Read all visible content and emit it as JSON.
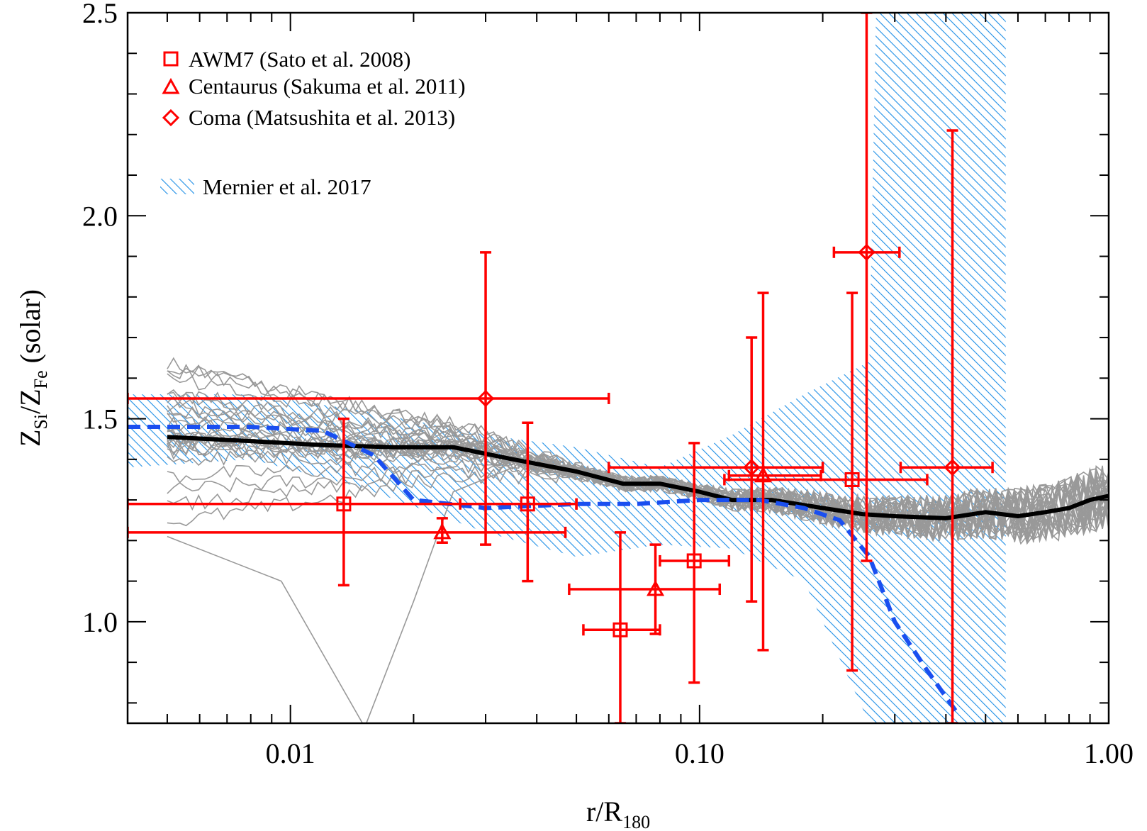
{
  "chart_data": {
    "type": "scatter",
    "x_scale": "log",
    "xlim": [
      0.004,
      1.0
    ],
    "ylim": [
      0.75,
      2.5
    ],
    "x_ticks": [
      0.01,
      0.1,
      1.0
    ],
    "x_tick_labels": [
      "0.01",
      "0.10",
      "1.00"
    ],
    "y_ticks": [
      1.0,
      1.5,
      2.0,
      2.5
    ],
    "y_tick_labels": [
      "1.0",
      "1.5",
      "2.0",
      "2.5"
    ],
    "xlabel": {
      "main": "r/R",
      "sub": "180"
    },
    "ylabel": {
      "z1": "Z",
      "sub1": "Si",
      "sep": "/Z",
      "sub2": "Fe",
      "suffix": " (solar)"
    },
    "colors": {
      "data": "#ff0000",
      "hatch": "#1f8fe6",
      "dashed": "#1a4ff0",
      "median": "#000000",
      "sims": "#999999"
    },
    "legend": [
      {
        "marker": "square",
        "label": "AWM7 (Sato et al. 2008)"
      },
      {
        "marker": "triangle",
        "label": "Centaurus (Sakuma et al. 2011)"
      },
      {
        "marker": "diamond",
        "label": "Coma (Matsushita et al. 2013)"
      },
      {
        "marker": "hatch",
        "label": "Mernier et al. 2017"
      }
    ],
    "series": [
      {
        "name": "AWM7 (Sato et al. 2008)",
        "marker": "square",
        "points": [
          {
            "x": 0.0135,
            "y": 1.29,
            "xmin": 0.004,
            "xmax": 0.05,
            "ymin": 1.09,
            "ymax": 1.5
          },
          {
            "x": 0.038,
            "y": 1.29,
            "xmin": 0.026,
            "xmax": 0.05,
            "ymin": 1.1,
            "ymax": 1.49
          },
          {
            "x": 0.064,
            "y": 0.98,
            "xmin": 0.052,
            "xmax": 0.08,
            "ymin": 0.75,
            "ymax": 1.22
          },
          {
            "x": 0.097,
            "y": 1.15,
            "xmin": 0.08,
            "xmax": 0.118,
            "ymin": 0.85,
            "ymax": 1.44
          },
          {
            "x": 0.236,
            "y": 1.35,
            "xmin": 0.115,
            "xmax": 0.36,
            "ymin": 0.88,
            "ymax": 1.81
          }
        ]
      },
      {
        "name": "Centaurus (Sakuma et al. 2011)",
        "marker": "triangle",
        "points": [
          {
            "x": 0.0235,
            "y": 1.22,
            "xmin": 0.004,
            "xmax": 0.047,
            "ymin": 1.195,
            "ymax": 1.255
          },
          {
            "x": 0.078,
            "y": 1.08,
            "xmin": 0.048,
            "xmax": 0.112,
            "ymin": 0.97,
            "ymax": 1.19
          },
          {
            "x": 0.143,
            "y": 1.36,
            "xmin": 0.118,
            "xmax": 0.198,
            "ymin": 0.93,
            "ymax": 1.81
          }
        ]
      },
      {
        "name": "Coma (Matsushita et al. 2013)",
        "marker": "diamond",
        "points": [
          {
            "x": 0.03,
            "y": 1.55,
            "xmin": 0.004,
            "xmax": 0.06,
            "ymin": 1.19,
            "ymax": 1.91
          },
          {
            "x": 0.134,
            "y": 1.38,
            "xmin": 0.06,
            "xmax": 0.2,
            "ymin": 1.05,
            "ymax": 1.7
          },
          {
            "x": 0.256,
            "y": 1.91,
            "xmin": 0.213,
            "xmax": 0.308,
            "ymin": 1.15,
            "ymax": 2.5
          },
          {
            "x": 0.415,
            "y": 1.38,
            "xmin": 0.31,
            "xmax": 0.52,
            "ymin": 0.75,
            "ymax": 2.21
          }
        ]
      }
    ],
    "median_profile": {
      "name": "simulation median",
      "x": [
        0.005,
        0.008,
        0.012,
        0.018,
        0.025,
        0.035,
        0.05,
        0.065,
        0.08,
        0.1,
        0.12,
        0.15,
        0.2,
        0.25,
        0.3,
        0.4,
        0.5,
        0.6,
        0.7,
        0.8,
        0.9,
        1.0
      ],
      "y": [
        1.455,
        1.445,
        1.435,
        1.43,
        1.43,
        1.4,
        1.37,
        1.34,
        1.34,
        1.32,
        1.3,
        1.3,
        1.28,
        1.265,
        1.26,
        1.255,
        1.27,
        1.26,
        1.27,
        1.28,
        1.3,
        1.31
      ]
    },
    "mernier_band": {
      "label": "Mernier et al. 2017",
      "x": [
        0.004,
        0.008,
        0.015,
        0.03,
        0.05,
        0.08,
        0.12,
        0.18,
        0.26,
        0.27,
        0.56
      ],
      "upper": [
        1.56,
        1.56,
        1.52,
        1.46,
        1.43,
        1.38,
        1.46,
        1.56,
        1.64,
        2.5,
        2.5
      ],
      "lower": [
        1.38,
        1.4,
        1.33,
        1.22,
        1.16,
        1.19,
        1.18,
        1.1,
        0.75,
        0.75,
        0.75
      ]
    },
    "mernier_fit": {
      "style": "dashed",
      "x": [
        0.004,
        0.008,
        0.012,
        0.016,
        0.02,
        0.03,
        0.05,
        0.07,
        0.1,
        0.14,
        0.18,
        0.22,
        0.26,
        0.3,
        0.36,
        0.43
      ],
      "y": [
        1.48,
        1.48,
        1.47,
        1.41,
        1.3,
        1.28,
        1.29,
        1.29,
        1.3,
        1.3,
        1.28,
        1.25,
        1.16,
        1.0,
        0.88,
        0.77
      ]
    }
  }
}
